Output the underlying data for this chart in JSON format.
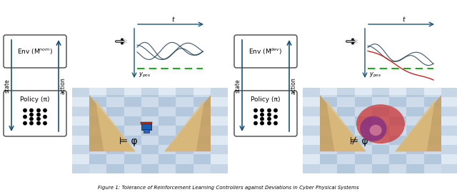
{
  "title": "Figure 1: Tolerance of Reinforcement Learning Controllers against Deviations in Cyber Physical Systems",
  "left_env_label": "Env (M$^{nom}$)",
  "right_env_label": "Env (M$^{dev}$)",
  "policy_label": "Policy (π)",
  "state_label": "state",
  "action_label": "action",
  "ypos_label": "$y_{pos}$",
  "t_label": "$t$",
  "models_satisfy": "⊨ φ",
  "models_not_satisfy": "⊭ φ",
  "box_color": "white",
  "box_edge": "#444444",
  "arrow_color": "#1a5276",
  "dashed_green": "#22aa22",
  "line_dark": "#1a3a4a",
  "line_red": "#cc2222",
  "bg_color": "white"
}
